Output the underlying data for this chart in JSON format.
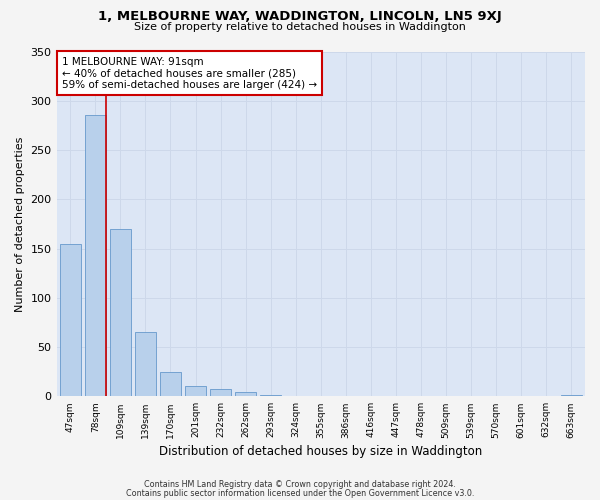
{
  "title1": "1, MELBOURNE WAY, WADDINGTON, LINCOLN, LN5 9XJ",
  "title2": "Size of property relative to detached houses in Waddington",
  "xlabel": "Distribution of detached houses by size in Waddington",
  "ylabel": "Number of detached properties",
  "bar_labels": [
    "47sqm",
    "78sqm",
    "109sqm",
    "139sqm",
    "170sqm",
    "201sqm",
    "232sqm",
    "262sqm",
    "293sqm",
    "324sqm",
    "355sqm",
    "386sqm",
    "416sqm",
    "447sqm",
    "478sqm",
    "509sqm",
    "539sqm",
    "570sqm",
    "601sqm",
    "632sqm",
    "663sqm"
  ],
  "bar_values": [
    155,
    286,
    170,
    65,
    25,
    10,
    7,
    4,
    1,
    0,
    0,
    0,
    0,
    0,
    0,
    0,
    0,
    0,
    0,
    0,
    1
  ],
  "bar_color": "#b8d0eb",
  "bar_edge_color": "#6699cc",
  "property_label": "1 MELBOURNE WAY: 91sqm",
  "annotation_line1": "← 40% of detached houses are smaller (285)",
  "annotation_line2": "59% of semi-detached houses are larger (424) →",
  "vline_color": "#cc0000",
  "vline_x": 1.42,
  "annotation_box_color": "#ffffff",
  "annotation_box_edgecolor": "#cc0000",
  "ylim": [
    0,
    350
  ],
  "yticks": [
    0,
    50,
    100,
    150,
    200,
    250,
    300,
    350
  ],
  "grid_color": "#cdd8ea",
  "background_color": "#dce6f5",
  "fig_facecolor": "#f4f4f4",
  "footer1": "Contains HM Land Registry data © Crown copyright and database right 2024.",
  "footer2": "Contains public sector information licensed under the Open Government Licence v3.0."
}
